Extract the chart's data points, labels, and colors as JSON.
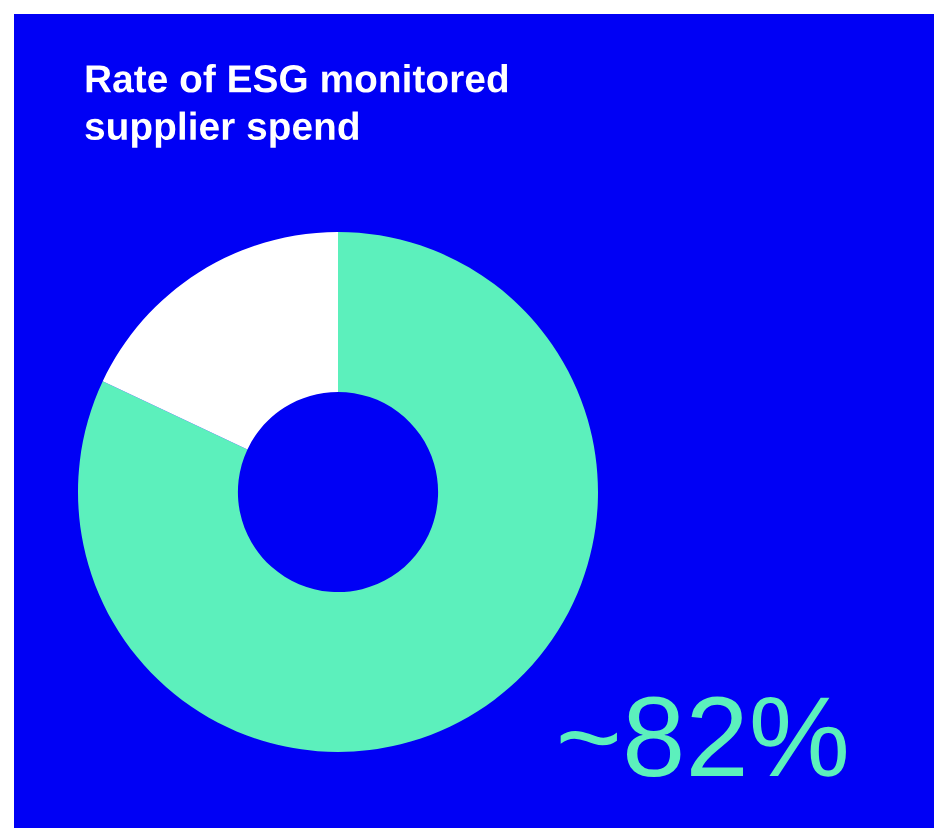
{
  "chart_data": {
    "type": "donut",
    "title": "Rate of ESG monitored supplier spend",
    "categories": [
      null,
      null
    ],
    "values": [
      82,
      18
    ],
    "colors": [
      "#5cf0bc",
      "#ffffff"
    ],
    "value_labels": [
      "~82%",
      null
    ],
    "legend": false
  }
}
